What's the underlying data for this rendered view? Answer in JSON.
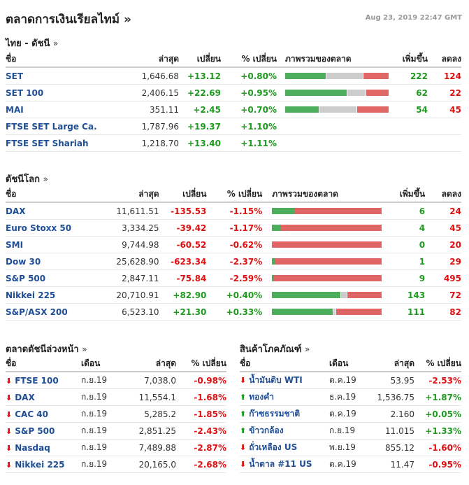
{
  "page": {
    "title": "ตลาดการเงินเรียลไทม์",
    "title_arrow": "»",
    "datetime": "Aug 23, 2019 22:47 GMT"
  },
  "thai": {
    "title": "ไทย - ดัชนี",
    "arrow": "»",
    "headers": [
      "ชื่อ",
      "ล่าสุด",
      "เปลี่ยน",
      "% เปลี่ยน",
      "ภาพรวมของตลาด",
      "เพิ่มขึ้น",
      "ลดลง"
    ],
    "rows": [
      {
        "name": "SET",
        "last": "1,646.68",
        "chg": "+13.12",
        "pct": "+0.80%",
        "dir": "up",
        "bar": [
          0.4,
          0.35,
          0.25
        ],
        "adv": "222",
        "dec": "124"
      },
      {
        "name": "SET 100",
        "last": "2,406.15",
        "chg": "+22.69",
        "pct": "+0.95%",
        "dir": "up",
        "bar": [
          0.6,
          0.18,
          0.22
        ],
        "adv": "62",
        "dec": "22"
      },
      {
        "name": "MAI",
        "last": "351.11",
        "chg": "+2.45",
        "pct": "+0.70%",
        "dir": "up",
        "bar": [
          0.33,
          0.36,
          0.31
        ],
        "adv": "54",
        "dec": "45"
      },
      {
        "name": "FTSE SET Large Ca.",
        "last": "1,787.96",
        "chg": "+19.37",
        "pct": "+1.10%",
        "dir": "up",
        "bar": null,
        "adv": "",
        "dec": ""
      },
      {
        "name": "FTSE SET Shariah",
        "last": "1,218.70",
        "chg": "+13.40",
        "pct": "+1.11%",
        "dir": "up",
        "bar": null,
        "adv": "",
        "dec": ""
      }
    ]
  },
  "world": {
    "title": "ดัชนีโลก",
    "arrow": "»",
    "headers": [
      "ชื่อ",
      "ล่าสุด",
      "เปลี่ยน",
      "% เปลี่ยน",
      "ภาพรวมของตลาด",
      "เพิ่มขึ้น",
      "ลดลง"
    ],
    "rows": [
      {
        "name": "DAX",
        "last": "11,611.51",
        "chg": "-135.53",
        "pct": "-1.15%",
        "dir": "dn",
        "bar": [
          0.2,
          0,
          0.8
        ],
        "adv": "6",
        "dec": "24"
      },
      {
        "name": "Euro Stoxx 50",
        "last": "3,334.25",
        "chg": "-39.42",
        "pct": "-1.17%",
        "dir": "dn",
        "bar": [
          0.08,
          0,
          0.92
        ],
        "adv": "4",
        "dec": "45"
      },
      {
        "name": "SMI",
        "last": "9,744.98",
        "chg": "-60.52",
        "pct": "-0.62%",
        "dir": "dn",
        "bar": [
          0,
          0,
          1
        ],
        "adv": "0",
        "dec": "20"
      },
      {
        "name": "Dow 30",
        "last": "25,628.90",
        "chg": "-623.34",
        "pct": "-2.37%",
        "dir": "dn",
        "bar": [
          0.03,
          0,
          0.97
        ],
        "adv": "1",
        "dec": "29"
      },
      {
        "name": "S&P 500",
        "last": "2,847.11",
        "chg": "-75.84",
        "pct": "-2.59%",
        "dir": "dn",
        "bar": [
          0.02,
          0,
          0.98
        ],
        "adv": "9",
        "dec": "495"
      },
      {
        "name": "Nikkei 225",
        "last": "20,710.91",
        "chg": "+82.90",
        "pct": "+0.40%",
        "dir": "up",
        "bar": [
          0.63,
          0.05,
          0.32
        ],
        "adv": "143",
        "dec": "72"
      },
      {
        "name": "S&P/ASX 200",
        "last": "6,523.10",
        "chg": "+21.30",
        "pct": "+0.33%",
        "dir": "up",
        "bar": [
          0.56,
          0.02,
          0.42
        ],
        "adv": "111",
        "dec": "82"
      }
    ]
  },
  "futures": {
    "title": "ตลาดดัชนีล่วงหน้า",
    "arrow": "»",
    "headers": [
      "ชื่อ",
      "เดือน",
      "ล่าสุด",
      "% เปลี่ยน"
    ],
    "rows": [
      {
        "name": "FTSE 100",
        "month": "ก.ย.19",
        "last": "7,038.0",
        "pct": "-0.98%",
        "dir": "dn"
      },
      {
        "name": "DAX",
        "month": "ก.ย.19",
        "last": "11,554.1",
        "pct": "-1.68%",
        "dir": "dn"
      },
      {
        "name": "CAC 40",
        "month": "ก.ย.19",
        "last": "5,285.2",
        "pct": "-1.85%",
        "dir": "dn"
      },
      {
        "name": "S&P 500",
        "month": "ก.ย.19",
        "last": "2,851.25",
        "pct": "-2.43%",
        "dir": "dn"
      },
      {
        "name": "Nasdaq",
        "month": "ก.ย.19",
        "last": "7,489.88",
        "pct": "-2.87%",
        "dir": "dn"
      },
      {
        "name": "Nikkei 225",
        "month": "ก.ย.19",
        "last": "20,165.0",
        "pct": "-2.68%",
        "dir": "dn"
      }
    ]
  },
  "commod": {
    "title": "สินค้าโภคภัณฑ์",
    "arrow": "»",
    "headers": [
      "ชื่อ",
      "เดือน",
      "ล่าสุด",
      "% เปลี่ยน"
    ],
    "rows": [
      {
        "name": "น้ำมันดิบ WTI",
        "month": "ต.ค.19",
        "last": "53.95",
        "pct": "-2.53%",
        "dir": "dn"
      },
      {
        "name": "ทองคำ",
        "month": "ธ.ค.19",
        "last": "1,536.75",
        "pct": "+1.87%",
        "dir": "up"
      },
      {
        "name": "ก๊าซธรรมชาติ",
        "month": "ต.ค.19",
        "last": "2.160",
        "pct": "+0.05%",
        "dir": "up"
      },
      {
        "name": "ข้าวกล้อง",
        "month": "ก.ย.19",
        "last": "11.015",
        "pct": "+1.33%",
        "dir": "up"
      },
      {
        "name": "ถั่วเหลือง US",
        "month": "พ.ย.19",
        "last": "855.12",
        "pct": "-1.60%",
        "dir": "dn"
      },
      {
        "name": "น้ำตาล #11 US",
        "month": "ต.ค.19",
        "last": "11.47",
        "pct": "-0.95%",
        "dir": "dn"
      }
    ]
  }
}
